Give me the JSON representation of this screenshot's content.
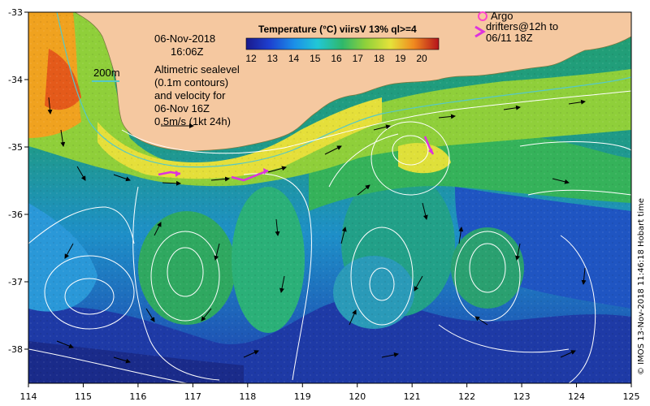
{
  "map": {
    "date_line1": "06-Nov-2018",
    "date_line2": "16:06Z",
    "scale_label": "200m",
    "notes": [
      "Altimetric sealevel",
      "(0.1m contours)",
      "and velocity for",
      "06-Nov 16Z",
      "0.5m/s (1kt 24h)"
    ],
    "credit": "© IMOS 13-Nov-2018 11:46:18 Hobart time",
    "argo_label": "Argo",
    "drifter_label_line1": "drifters@12h to",
    "drifter_label_line2": "06/11 18Z",
    "lon_ticks": [
      "114",
      "115",
      "116",
      "117",
      "118",
      "119",
      "120",
      "121",
      "122",
      "123",
      "124",
      "125"
    ],
    "lat_ticks": [
      "-33",
      "-34",
      "-35",
      "-36",
      "-37",
      "-38"
    ],
    "colors": {
      "land": "#f5c8a0",
      "argo_marker": "#ff44cc",
      "drifter": "#dd33dd",
      "contour": "#ffffff",
      "vector": "#000000"
    }
  },
  "legend": {
    "title": "Temperature (°C) viirsV 13% ql>=4",
    "ticks": [
      "12",
      "13",
      "14",
      "15",
      "16",
      "17",
      "18",
      "19",
      "20"
    ]
  }
}
